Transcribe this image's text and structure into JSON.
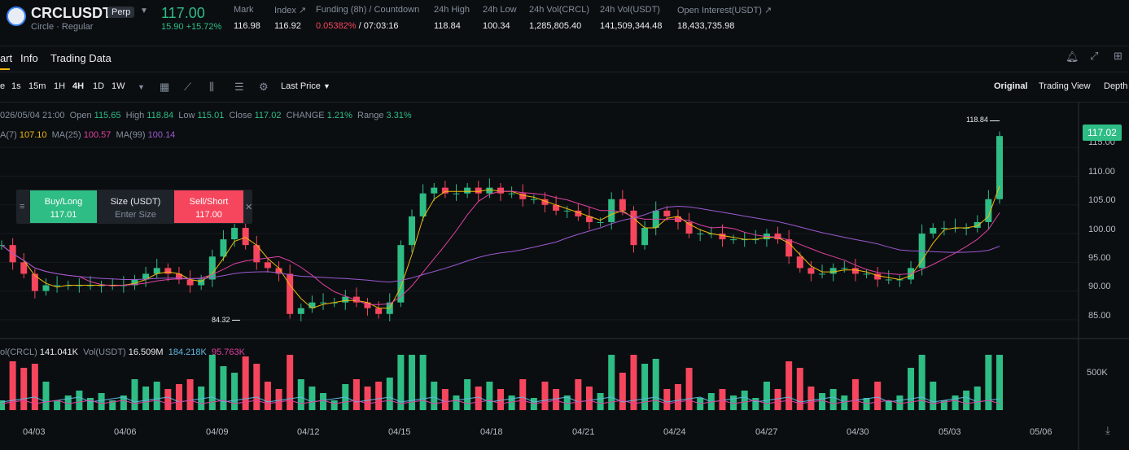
{
  "header": {
    "symbol": "CRCLUSDT",
    "badge": "Perp",
    "subtitle": "Circle · Regular",
    "last_price": "117.00",
    "change": "15.90 +15.72%",
    "stats": [
      {
        "label": "Mark",
        "value": "116.98"
      },
      {
        "label": "Index ↗",
        "value": "116.92"
      },
      {
        "label": "Funding (8h) / Countdown",
        "value": "0.05382%",
        "value2": " / 07:03:16"
      },
      {
        "label": "24h High",
        "value": "118.84"
      },
      {
        "label": "24h Low",
        "value": "100.34"
      },
      {
        "label": "24h Vol(CRCL)",
        "value": "1,285,805.40"
      },
      {
        "label": "24h Vol(USDT)",
        "value": "141,509,344.48"
      },
      {
        "label": "Open Interest(USDT) ↗",
        "value": "18,433,735.98"
      }
    ]
  },
  "tabs": [
    "art",
    "Info",
    "Trading Data"
  ],
  "toolbar": {
    "intervals": [
      "e",
      "1s",
      "15m",
      "1H",
      "4H",
      "1D",
      "1W"
    ],
    "price_type": "Last Price",
    "views": [
      "Original",
      "Trading View",
      "Depth"
    ]
  },
  "ohlc": {
    "date": "026/05/04 21:00",
    "open_label": "Open",
    "open": "115.65",
    "high_label": "High",
    "high": "118.84",
    "low_label": "Low",
    "low": "115.01",
    "close_label": "Close",
    "close": "117.02",
    "change_label": "CHANGE",
    "change": "1.21%",
    "range_label": "Range",
    "range": "3.31%"
  },
  "ma": {
    "ma7_label": "A(7)",
    "ma7": "107.10",
    "ma25_label": "MA(25)",
    "ma25": "100.57",
    "ma99_label": "MA(99)",
    "ma99": "100.14"
  },
  "order_panel": {
    "buy_label": "Buy/Long",
    "buy_price": "117.01",
    "size_label": "Size (USDT)",
    "size_placeholder": "Enter Size",
    "sell_label": "Sell/Short",
    "sell_price": "117.00"
  },
  "vol": {
    "label1": "ol(CRCL)",
    "val1": "141.041K",
    "label2": "Vol(USDT)",
    "val2": "16.509M",
    "val3": "184.218K",
    "val4": "95.763K",
    "axis_label": "500K"
  },
  "chart_data": {
    "type": "candlestick",
    "y_ticks": [
      "115.00",
      "110.00",
      "105.00",
      "100.00",
      "95.00",
      "90.00",
      "85.00"
    ],
    "ylim": [
      82,
      120
    ],
    "x_ticks": [
      "04/03",
      "04/06",
      "04/09",
      "04/12",
      "04/15",
      "04/18",
      "04/21",
      "04/24",
      "04/27",
      "04/30",
      "05/03",
      "05/06"
    ],
    "high_label": "118.84",
    "low_label": "84.32",
    "current_price": "117.02",
    "closes": [
      98,
      95,
      93,
      90,
      91,
      91,
      91,
      91,
      91,
      91,
      91,
      91,
      92,
      93,
      94,
      93,
      92,
      91,
      92,
      96,
      99,
      101,
      98,
      95,
      94,
      93,
      86,
      87,
      88,
      88,
      88,
      89,
      88,
      87,
      86,
      88,
      98,
      103,
      107,
      108,
      107,
      107,
      108,
      107,
      108,
      107,
      107,
      106,
      106,
      105,
      104,
      104,
      103,
      102,
      102,
      106,
      104,
      98,
      101,
      104,
      103,
      102,
      100,
      100,
      100,
      99,
      99,
      99,
      99,
      100,
      99,
      96,
      94,
      93,
      93,
      94,
      94,
      93,
      93,
      92,
      92,
      92,
      94,
      100,
      101,
      101,
      101,
      101,
      102,
      106,
      117
    ]
  }
}
